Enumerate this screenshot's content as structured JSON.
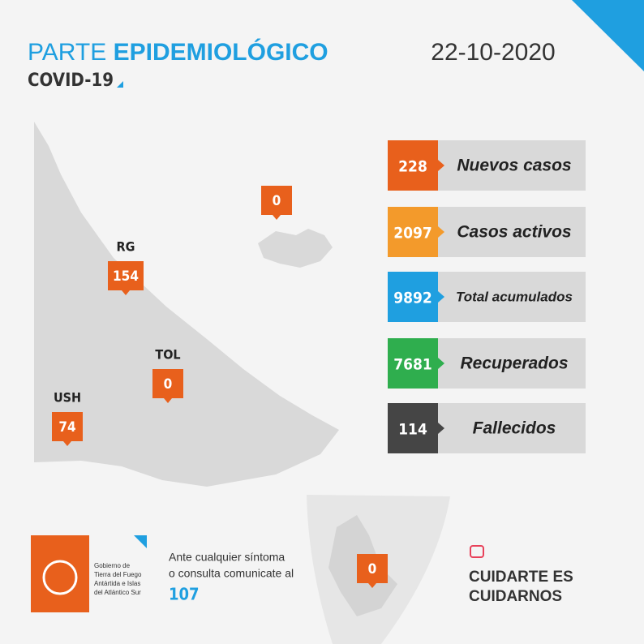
{
  "header": {
    "title_light": "PARTE",
    "title_bold": "EPIDEMIOLÓGICO",
    "subtitle": "COVID-19",
    "date": "22-10-2020"
  },
  "map": {
    "markers": [
      {
        "label": "RG",
        "value": "154"
      },
      {
        "label": "TOL",
        "value": "0"
      },
      {
        "label": "USH",
        "value": "74"
      },
      {
        "value": "0"
      },
      {
        "value": "0"
      }
    ]
  },
  "stats": [
    {
      "value": "228",
      "label": "Nuevos casos",
      "color": "#e8601c"
    },
    {
      "value": "2097",
      "label": "Casos activos",
      "color": "#f39a2b"
    },
    {
      "value": "9892",
      "label": "Total acumulados",
      "color": "#1f9fe0"
    },
    {
      "value": "7681",
      "label": "Recuperados",
      "color": "#2fae4e"
    },
    {
      "value": "114",
      "label": "Fallecidos",
      "color": "#454545"
    }
  ],
  "footer": {
    "logo_lines": [
      "Gobierno de",
      "Tierra del Fuego",
      "Antártida e Islas",
      "del Atlántico Sur"
    ],
    "contact_lines": [
      "Ante cualquier síntoma",
      "o consulta comunicate al"
    ],
    "phone": "107",
    "slogan_lines": [
      "CUIDARTE ES",
      "CUIDARNOS"
    ]
  }
}
